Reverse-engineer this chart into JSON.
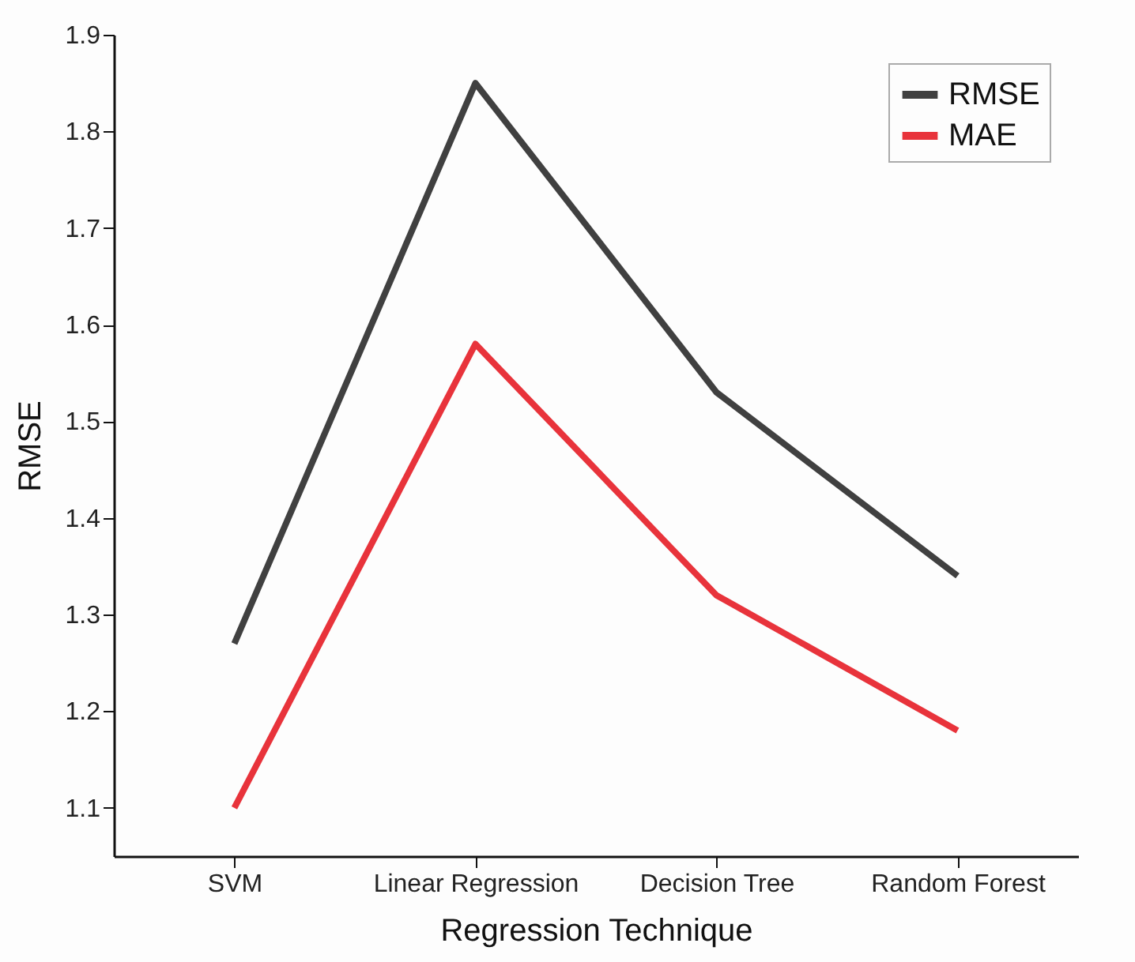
{
  "chart_data": {
    "type": "line",
    "xlabel": "Regression Technique",
    "ylabel": "RMSE",
    "categories": [
      "SVM",
      "Linear Regression",
      "Decision Tree",
      "Random Forest"
    ],
    "series": [
      {
        "name": "RMSE",
        "color": "#404040",
        "values": [
          1.27,
          1.85,
          1.53,
          1.34
        ]
      },
      {
        "name": "MAE",
        "color": "#e8333b",
        "values": [
          1.1,
          1.58,
          1.32,
          1.18
        ]
      }
    ],
    "ylim": [
      1.05,
      1.9
    ],
    "yticks": [
      1.1,
      1.2,
      1.3,
      1.4,
      1.5,
      1.6,
      1.7,
      1.8,
      1.9
    ],
    "grid": false,
    "legend": "top right",
    "marker": "none",
    "line_style": "solid"
  }
}
